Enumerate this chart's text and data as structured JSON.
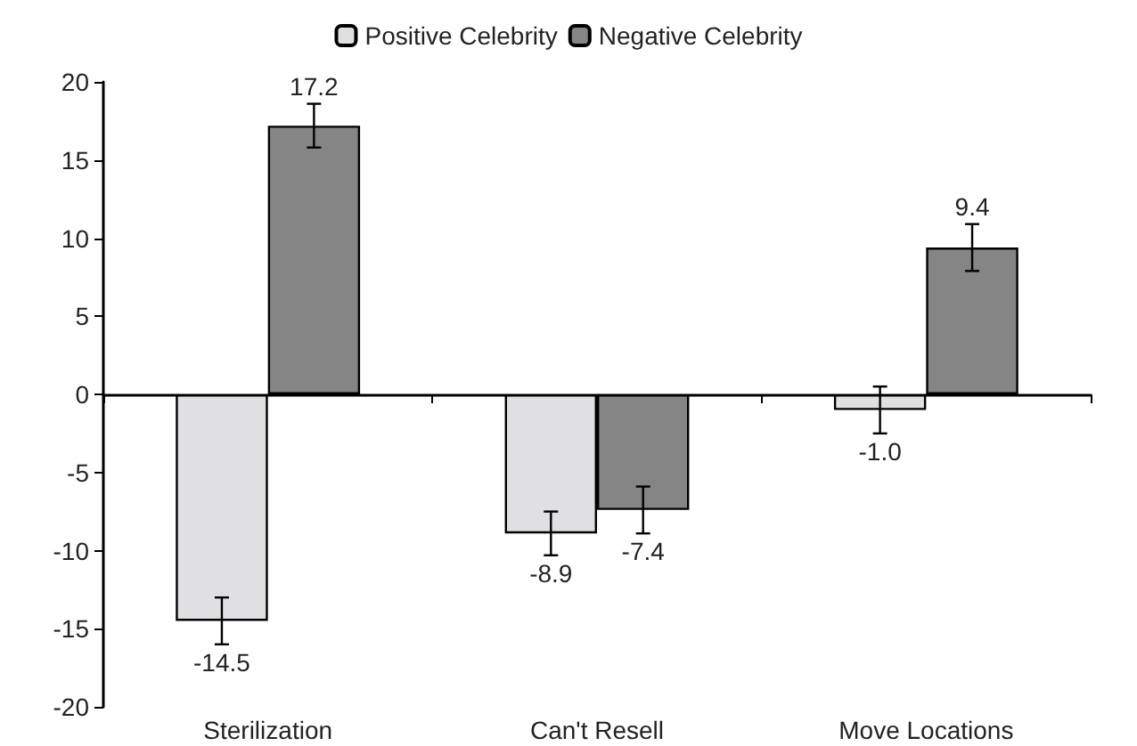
{
  "chart_data": {
    "type": "bar",
    "categories": [
      "Sterilization",
      "Can't Resell",
      "Move Locations"
    ],
    "series": [
      {
        "name": "Positive Celebrity",
        "color": "#e0e0e2",
        "values": [
          -14.5,
          -8.9,
          -1.0
        ],
        "value_labels": [
          "-14.5",
          "-8.9",
          "-1.0"
        ],
        "errors": [
          1.5,
          1.4,
          1.5
        ]
      },
      {
        "name": "Negative Celebrity",
        "color": "#858585",
        "values": [
          17.2,
          -7.4,
          9.4
        ],
        "value_labels": [
          "17.2",
          "-7.4",
          "9.4"
        ],
        "errors": [
          1.4,
          1.5,
          1.5
        ]
      }
    ],
    "ylim": [
      -20,
      20
    ],
    "yticks": [
      -20,
      -15,
      -10,
      -5,
      0,
      5,
      10,
      15,
      20
    ],
    "legend": "top"
  }
}
